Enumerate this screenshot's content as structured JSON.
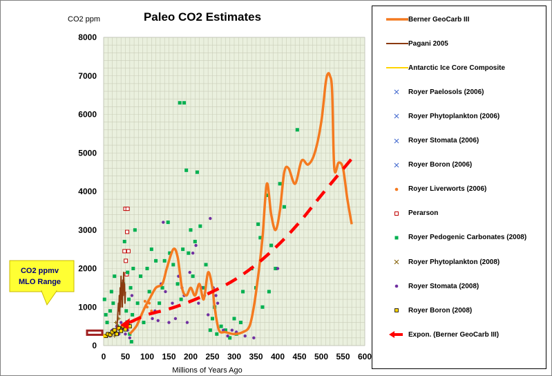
{
  "chart_data": {
    "type": "line",
    "title": "Paleo CO2 Estimates",
    "ylabel": "CO2 ppm",
    "xlabel": "Millions  of Years Ago",
    "xlim": [
      0,
      600
    ],
    "ylim": [
      0,
      8000
    ],
    "x_ticks": [
      0,
      50,
      100,
      150,
      200,
      250,
      300,
      350,
      400,
      450,
      500,
      550,
      600
    ],
    "y_ticks": [
      0,
      1000,
      2000,
      3000,
      4000,
      5000,
      6000,
      7000,
      8000
    ],
    "grid": true,
    "legend_position": "right",
    "callout": {
      "line1": "CO2 ppmv",
      "line2": "MLO Range",
      "range": [
        280,
        390
      ]
    },
    "series": [
      {
        "name": "Berner GeoCarb III",
        "kind": "line",
        "color": "#f47a20",
        "x": [
          60,
          75,
          85,
          95,
          105,
          120,
          135,
          145,
          160,
          170,
          180,
          190,
          200,
          210,
          220,
          230,
          240,
          250,
          255,
          265,
          280,
          300,
          320,
          335,
          345,
          355,
          365,
          375,
          385,
          395,
          405,
          415,
          425,
          440,
          455,
          470,
          485,
          500,
          510,
          515,
          520,
          525,
          530,
          540,
          550,
          560,
          570
        ],
        "y": [
          300,
          500,
          750,
          1000,
          1200,
          1500,
          1600,
          2000,
          2500,
          2300,
          1500,
          1300,
          1500,
          1300,
          1600,
          1200,
          1900,
          1500,
          1000,
          400,
          350,
          300,
          350,
          500,
          1000,
          1800,
          2800,
          4200,
          3400,
          3000,
          3500,
          4500,
          4600,
          4200,
          4800,
          4700,
          5000,
          5800,
          6800,
          7050,
          7000,
          6600,
          4600,
          4750,
          4600,
          3800,
          3150
        ]
      },
      {
        "name": "Pagani 2005",
        "kind": "line",
        "color": "#8b3a10",
        "x": [
          30,
          32,
          34,
          35,
          36,
          37,
          38,
          39,
          40,
          41,
          42,
          43,
          44,
          45,
          46,
          47,
          48,
          49,
          50
        ],
        "y": [
          400,
          700,
          1100,
          900,
          1300,
          800,
          1500,
          1000,
          1800,
          1200,
          1600,
          1000,
          1700,
          1300,
          1900,
          1500,
          1600,
          1100,
          1400
        ]
      },
      {
        "name": "Antarctic Ice Core Composite",
        "kind": "line",
        "color": "#ffd400",
        "x": [
          0,
          0.4,
          0.8
        ],
        "y": [
          280,
          220,
          300
        ]
      },
      {
        "name": "Royer Paelosols (2006)",
        "kind": "points",
        "color": "#4a6fd0",
        "x": [],
        "y": []
      },
      {
        "name": "Royer Phytoplankton (2006)",
        "kind": "points",
        "color": "#4a6fd0",
        "x": [],
        "y": []
      },
      {
        "name": "Royer Stomata (2006)",
        "kind": "points",
        "color": "#4a6fd0",
        "x": [],
        "y": []
      },
      {
        "name": "Royer Boron (2006)",
        "kind": "points",
        "color": "#4a6fd0",
        "x": [],
        "y": []
      },
      {
        "name": "Royer Liverworts (2006)",
        "kind": "points",
        "color": "#f47a20",
        "x": [
          100,
          105,
          110,
          95
        ],
        "y": [
          1000,
          1100,
          900,
          1150
        ]
      },
      {
        "name": "Perarson",
        "kind": "points",
        "color": "#c00000",
        "x": [
          50,
          55,
          54,
          57,
          48,
          51,
          53
        ],
        "y": [
          3550,
          3550,
          2950,
          2450,
          2450,
          2200,
          1850
        ]
      },
      {
        "name": "Royer Pedogenic Carbonates (2008)",
        "kind": "points",
        "color": "#00b050",
        "x": [
          2,
          5,
          8,
          15,
          18,
          22,
          25,
          32,
          45,
          48,
          52,
          55,
          58,
          60,
          62,
          64,
          66,
          68,
          72,
          78,
          85,
          92,
          100,
          105,
          110,
          120,
          128,
          135,
          140,
          148,
          152,
          160,
          170,
          175,
          178,
          182,
          185,
          190,
          195,
          200,
          205,
          210,
          215,
          222,
          228,
          235,
          245,
          250,
          255,
          260,
          270,
          280,
          290,
          300,
          305,
          315,
          320,
          340,
          350,
          355,
          360,
          365,
          375,
          380,
          385,
          395,
          405,
          415,
          445
        ],
        "y": [
          1200,
          800,
          600,
          900,
          1400,
          1100,
          1800,
          500,
          1600,
          2700,
          900,
          1900,
          1200,
          300,
          1500,
          100,
          800,
          2000,
          3000,
          1100,
          1800,
          600,
          2000,
          1400,
          2500,
          2200,
          1100,
          1500,
          2200,
          3200,
          2400,
          2100,
          1600,
          6300,
          1200,
          2500,
          6300,
          4550,
          2400,
          3000,
          1800,
          2700,
          4500,
          3100,
          1500,
          2100,
          400,
          700,
          1000,
          300,
          500,
          400,
          200,
          700,
          300,
          600,
          1400,
          2000,
          1500,
          3150,
          2800,
          1000,
          3900,
          1400,
          2600,
          2000,
          4200,
          3600,
          5600
        ]
      },
      {
        "name": "Royer Phytoplankton (2008)",
        "kind": "points",
        "color": "#8b6914",
        "x": [
          20,
          22,
          25,
          28,
          30,
          33,
          35,
          38,
          40
        ],
        "y": [
          300,
          400,
          250,
          600,
          350,
          500,
          700,
          400,
          450
        ]
      },
      {
        "name": "Royer Stomata (2008)",
        "kind": "points",
        "color": "#7030a0",
        "x": [
          10,
          15,
          20,
          25,
          30,
          35,
          40,
          45,
          50,
          55,
          60,
          65,
          112,
          118,
          125,
          132,
          137,
          142,
          150,
          158,
          165,
          172,
          180,
          185,
          192,
          198,
          205,
          212,
          218,
          225,
          232,
          240,
          245,
          252,
          258,
          262,
          275,
          285,
          295,
          305,
          325,
          345,
          400
        ],
        "y": [
          300,
          250,
          400,
          350,
          500,
          300,
          600,
          450,
          300,
          400,
          200,
          1300,
          700,
          900,
          650,
          1600,
          3200,
          1400,
          600,
          1100,
          700,
          1800,
          1500,
          1300,
          600,
          1900,
          2400,
          2600,
          1100,
          1500,
          1300,
          800,
          3300,
          1500,
          1300,
          1100,
          400,
          250,
          400,
          350,
          250,
          200,
          2000
        ]
      },
      {
        "name": "Royer Boron (2008)",
        "kind": "points",
        "color": "#ffd400",
        "x": [
          5,
          10,
          15,
          20,
          25,
          30,
          35,
          40,
          45,
          50,
          55,
          60
        ],
        "y": [
          250,
          300,
          280,
          350,
          400,
          300,
          450,
          380,
          500,
          420,
          600,
          500
        ]
      },
      {
        "name": "Expon. (Berner GeoCarb III)",
        "kind": "trend",
        "color": "#ff0000",
        "x": [
          60,
          100,
          150,
          200,
          250,
          300,
          350,
          400,
          450,
          500,
          570
        ],
        "y": [
          600,
          800,
          950,
          1150,
          1400,
          1700,
          2100,
          2600,
          3200,
          3900,
          4850
        ]
      }
    ]
  }
}
